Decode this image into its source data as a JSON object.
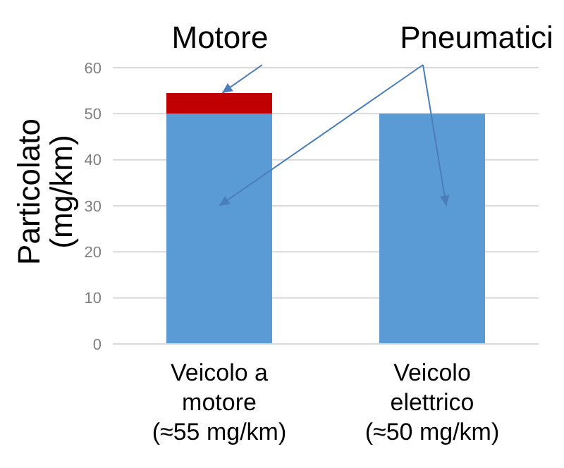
{
  "chart_data": {
    "type": "bar",
    "stacked": true,
    "ylabel": "Particolato (mg/km)",
    "categories": [
      "Veicolo a motore (≈55 mg/km)",
      "Veicolo elettrico (≈50 mg/km)"
    ],
    "series": [
      {
        "name": "Pneumatici",
        "color": "#5b9bd5",
        "values": [
          50,
          50
        ]
      },
      {
        "name": "Motore",
        "color": "#c00000",
        "values": [
          4.5,
          0
        ]
      }
    ],
    "ylim": [
      0,
      60
    ],
    "yticks": [
      0,
      10,
      20,
      30,
      40,
      50,
      60
    ],
    "grid": "y",
    "legend": false
  }
}
